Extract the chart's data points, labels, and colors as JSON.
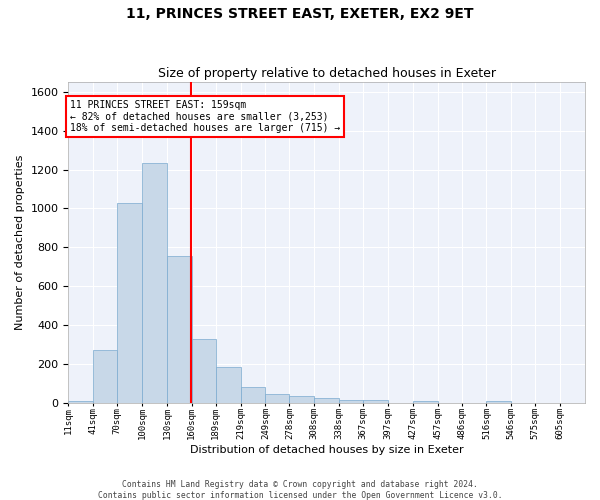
{
  "title1": "11, PRINCES STREET EAST, EXETER, EX2 9ET",
  "title2": "Size of property relative to detached houses in Exeter",
  "xlabel": "Distribution of detached houses by size in Exeter",
  "ylabel": "Number of detached properties",
  "footer1": "Contains HM Land Registry data © Crown copyright and database right 2024.",
  "footer2": "Contains public sector information licensed under the Open Government Licence v3.0.",
  "annotation_line1": "11 PRINCES STREET EAST: 159sqm",
  "annotation_line2": "← 82% of detached houses are smaller (3,253)",
  "annotation_line3": "18% of semi-detached houses are larger (715) →",
  "property_size": 159,
  "bar_color": "#c8d8e8",
  "bar_edge_color": "#7aaacf",
  "vline_color": "red",
  "background_color": "#eef2fa",
  "x_labels": [
    "11sqm",
    "41sqm",
    "70sqm",
    "100sqm",
    "130sqm",
    "160sqm",
    "189sqm",
    "219sqm",
    "249sqm",
    "278sqm",
    "308sqm",
    "338sqm",
    "367sqm",
    "397sqm",
    "427sqm",
    "457sqm",
    "486sqm",
    "516sqm",
    "546sqm",
    "575sqm",
    "605sqm"
  ],
  "bar_values": [
    10,
    275,
    1030,
    1235,
    755,
    330,
    185,
    80,
    45,
    35,
    25,
    15,
    15,
    0,
    10,
    0,
    0,
    10,
    0,
    0,
    0
  ],
  "bin_edges": [
    11,
    41,
    70,
    100,
    130,
    160,
    189,
    219,
    249,
    278,
    308,
    338,
    367,
    397,
    427,
    457,
    486,
    516,
    546,
    575,
    605
  ],
  "ylim": [
    0,
    1650
  ],
  "yticks": [
    0,
    200,
    400,
    600,
    800,
    1000,
    1200,
    1400,
    1600
  ],
  "title1_fontsize": 10,
  "title2_fontsize": 9,
  "xlabel_fontsize": 8,
  "ylabel_fontsize": 8
}
